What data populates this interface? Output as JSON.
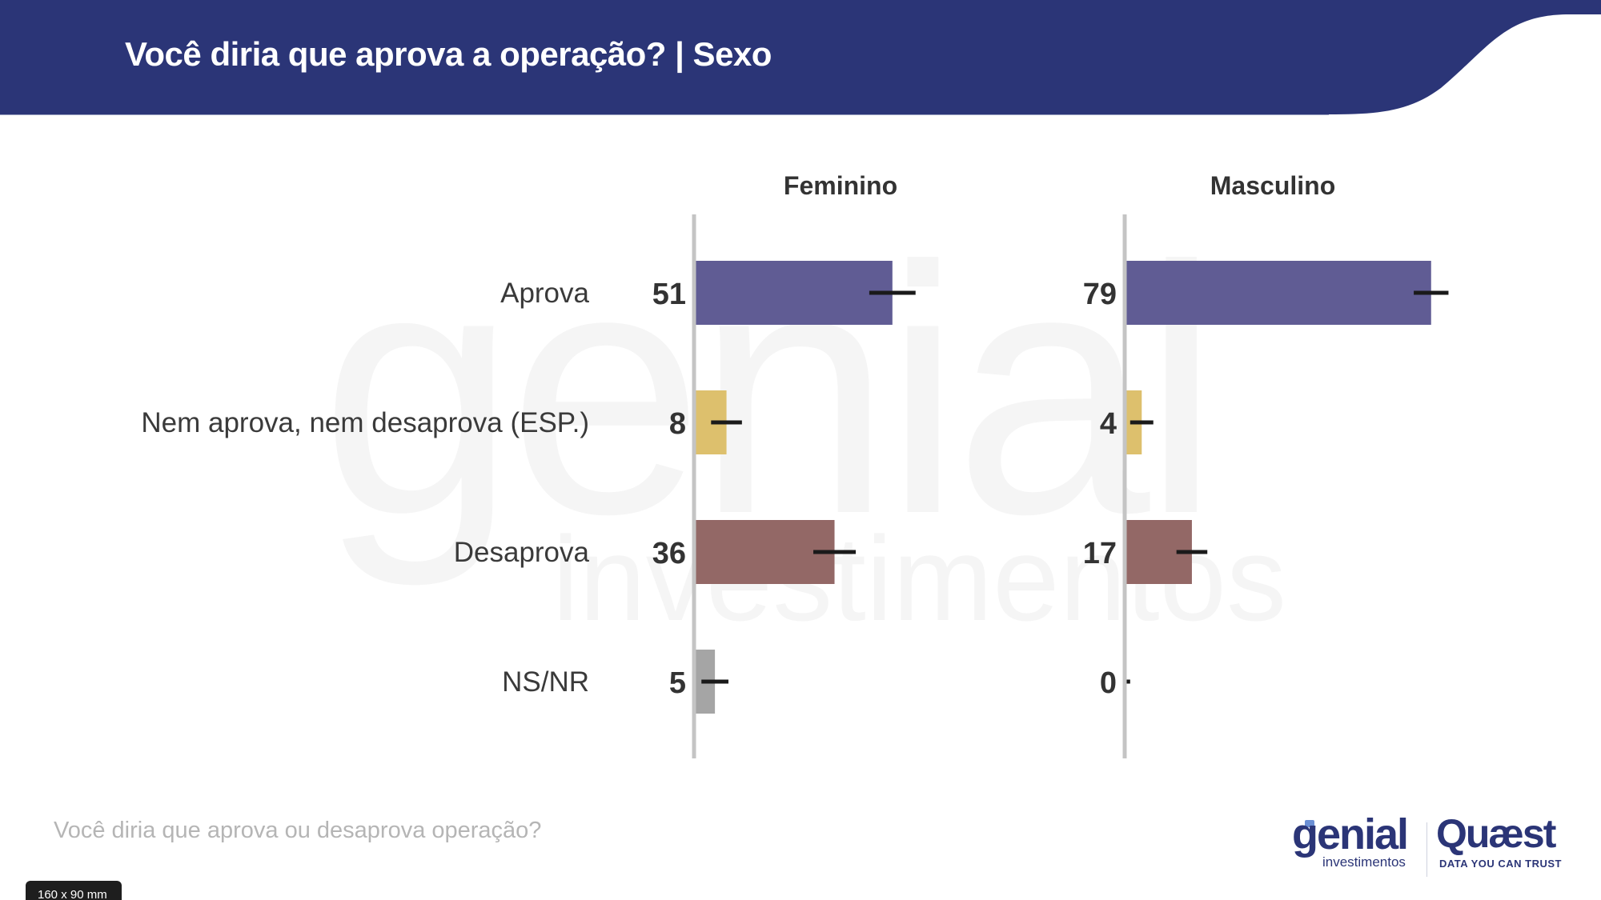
{
  "header": {
    "title": "Você diria que aprova a operação? | Sexo",
    "background_color": "#2b3577"
  },
  "watermark": {
    "word": "genial",
    "sub": "investimentos"
  },
  "chart_data": {
    "type": "bar",
    "orientation": "horizontal",
    "title": "Você diria que aprova a operação? | Sexo",
    "categories": [
      "Aprova",
      "Nem aprova, nem desaprova (ESP.)",
      "Desaprova",
      "NS/NR"
    ],
    "category_colors": [
      "#605c94",
      "#ddc06d",
      "#936866",
      "#a5a5a5"
    ],
    "error_bar_color": "#1a1a1a",
    "axis_color": "#c4c4c4",
    "xlim": [
      0,
      100
    ],
    "grid": false,
    "legend": "none",
    "units": "%",
    "panels": [
      {
        "name": "Feminino",
        "values": [
          51,
          8,
          36,
          5
        ],
        "margin_of_error": [
          6,
          4,
          5.5,
          3.5
        ]
      },
      {
        "name": "Masculino",
        "values": [
          79,
          4,
          17,
          0
        ],
        "margin_of_error": [
          4.5,
          3,
          4,
          1
        ]
      }
    ]
  },
  "footer": {
    "question": "Você diria que aprova ou desaprova operação?",
    "size_badge": "160 x 90 mm"
  },
  "logos": {
    "genial": "genial",
    "genial_sub": "investimentos",
    "quaest": "Quæst",
    "quaest_tagline": "DATA YOU CAN TRUST"
  }
}
